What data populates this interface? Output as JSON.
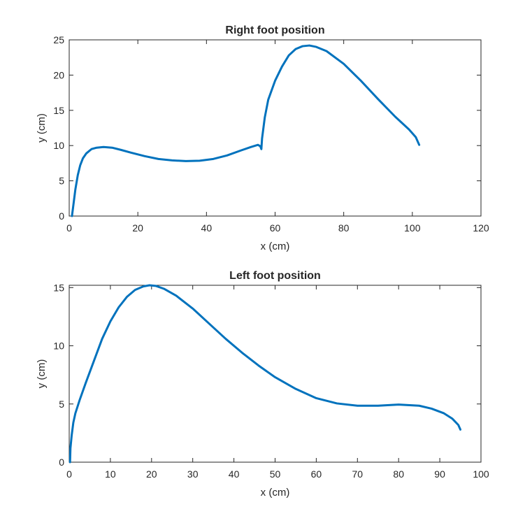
{
  "chart_data": [
    {
      "type": "line",
      "title": "Right foot position",
      "xlabel": "x (cm)",
      "ylabel": "y (cm)",
      "xlim": [
        0,
        120
      ],
      "ylim": [
        0,
        25
      ],
      "xticks": [
        0,
        20,
        40,
        60,
        80,
        100,
        120
      ],
      "yticks": [
        0,
        5,
        10,
        15,
        20,
        25
      ],
      "grid": false,
      "color": "#0072BD",
      "series": [
        {
          "x": [
            0.8,
            1.2,
            1.8,
            2.5,
            3.2,
            4.0,
            5.0,
            6.5,
            8.0,
            10.0,
            12.5,
            15.0,
            18.0,
            22.0,
            26.0,
            30.0,
            34.0,
            38.0,
            42.0,
            46.0,
            50.0,
            53.0,
            55.0,
            55.7,
            56.0,
            56.2,
            57.0,
            58.0,
            60.0,
            62.0,
            64.0,
            66.0,
            68.0,
            70.0,
            72.0,
            75.0,
            80.0,
            85.0,
            90.0,
            95.0,
            99.0,
            101.0,
            102.0
          ],
          "y": [
            0.0,
            1.5,
            3.8,
            5.8,
            7.2,
            8.2,
            8.9,
            9.5,
            9.7,
            9.8,
            9.7,
            9.4,
            9.0,
            8.5,
            8.1,
            7.9,
            7.8,
            7.85,
            8.1,
            8.6,
            9.3,
            9.8,
            10.1,
            9.9,
            9.5,
            11.0,
            14.0,
            16.5,
            19.2,
            21.2,
            22.8,
            23.7,
            24.1,
            24.2,
            24.0,
            23.4,
            21.6,
            19.2,
            16.6,
            14.1,
            12.3,
            11.2,
            10.1
          ]
        }
      ]
    },
    {
      "type": "line",
      "title": "Left foot position",
      "xlabel": "x (cm)",
      "ylabel": "y (cm)",
      "xlim": [
        0,
        100
      ],
      "ylim": [
        0,
        15.2
      ],
      "xticks": [
        0,
        10,
        20,
        30,
        40,
        50,
        60,
        70,
        80,
        90,
        100
      ],
      "yticks": [
        0,
        5,
        10,
        15
      ],
      "grid": false,
      "color": "#0072BD",
      "series": [
        {
          "x": [
            0.2,
            0.3,
            0.6,
            1.0,
            1.5,
            2.5,
            4.0,
            6.0,
            8.0,
            10.0,
            12.0,
            14.0,
            16.0,
            18.0,
            19.5,
            21.0,
            23.0,
            26.0,
            30.0,
            34.0,
            38.0,
            42.0,
            46.0,
            50.0,
            55.0,
            60.0,
            65.0,
            70.0,
            75.0,
            80.0,
            85.0,
            88.0,
            91.0,
            93.0,
            94.5,
            95.0
          ],
          "y": [
            0.0,
            1.2,
            2.3,
            3.4,
            4.2,
            5.3,
            6.8,
            8.7,
            10.6,
            12.1,
            13.3,
            14.2,
            14.8,
            15.1,
            15.2,
            15.15,
            14.9,
            14.3,
            13.2,
            11.9,
            10.6,
            9.4,
            8.3,
            7.3,
            6.3,
            5.5,
            5.05,
            4.85,
            4.85,
            4.95,
            4.85,
            4.6,
            4.2,
            3.75,
            3.2,
            2.8
          ]
        }
      ]
    }
  ]
}
